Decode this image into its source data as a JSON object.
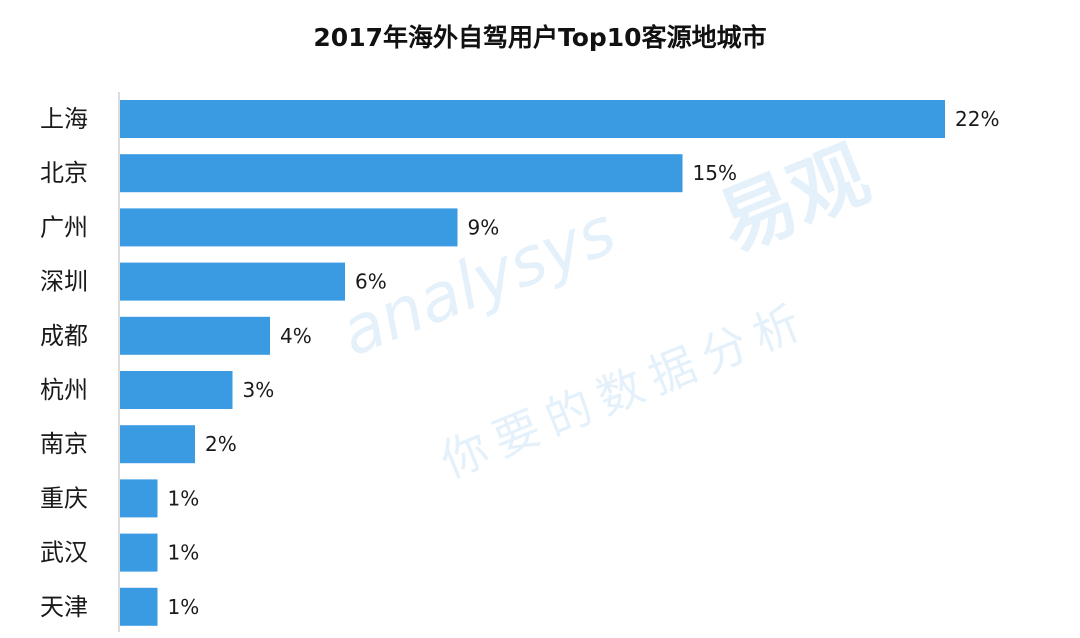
{
  "chart_data": {
    "type": "bar",
    "orientation": "horizontal",
    "title": "2017年海外自驾用户Top10客源地城市",
    "categories": [
      "上海",
      "北京",
      "广州",
      "深圳",
      "成都",
      "杭州",
      "南京",
      "重庆",
      "武汉",
      "天津"
    ],
    "values": [
      22,
      15,
      9,
      6,
      4,
      3,
      2,
      1,
      1,
      1
    ],
    "value_labels": [
      "22%",
      "15%",
      "9%",
      "6%",
      "4%",
      "3%",
      "2%",
      "1%",
      "1%",
      "1%"
    ],
    "unit": "%",
    "bar_color": "#3a9ae2",
    "xlabel": "",
    "ylabel": "",
    "grid": false,
    "legend": "none"
  },
  "watermark": {
    "brand_latin": "analysys",
    "brand_cn": "易观",
    "slogan": "你要的数据分析",
    "color": "#3a9ae2",
    "accent_color": "#f0a23a"
  }
}
